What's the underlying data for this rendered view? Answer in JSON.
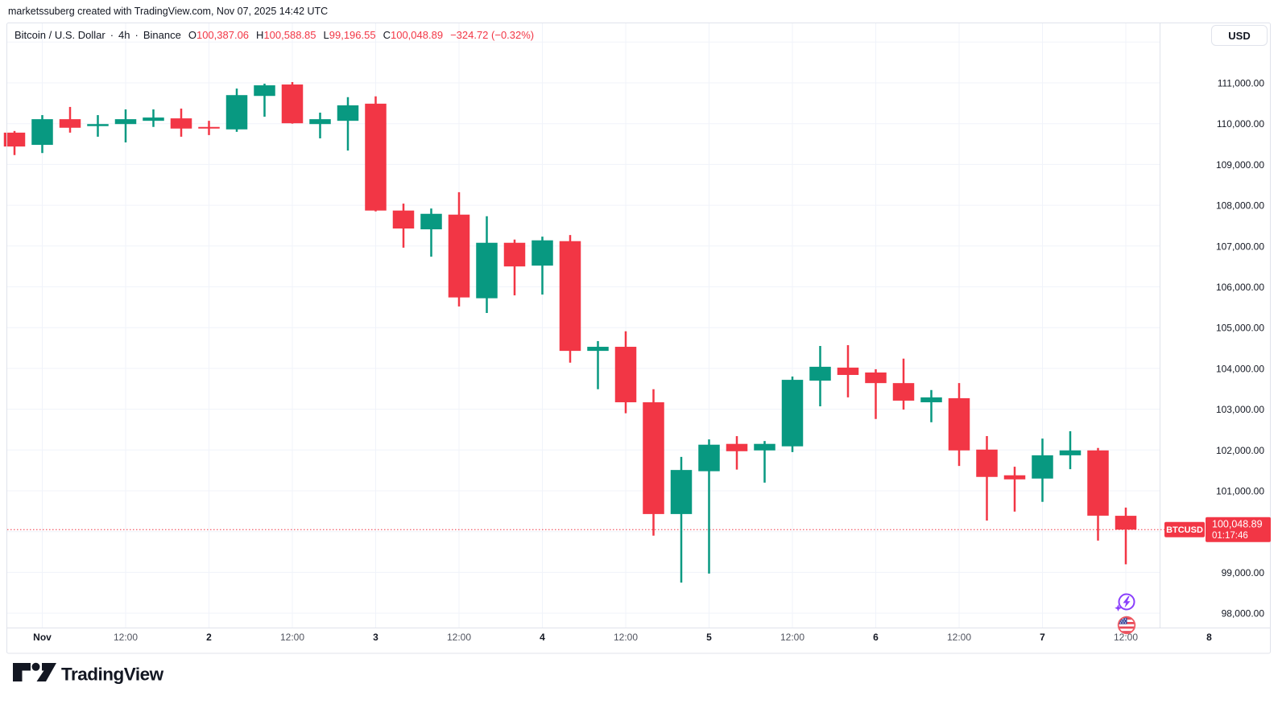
{
  "attribution": "marketssuberg created with TradingView.com, Nov 07, 2025 14:42 UTC",
  "legend": {
    "symbol_title": "Bitcoin / U.S. Dollar",
    "separator": "·",
    "interval": "4h",
    "exchange": "Binance",
    "ohlc": {
      "o_label": "O",
      "o": "100,387.06",
      "h_label": "H",
      "h": "100,588.85",
      "l_label": "L",
      "l": "99,196.55",
      "c_label": "C",
      "c": "100,048.89"
    },
    "change": "−324.72 (−0.32%)"
  },
  "price_scale": {
    "currency_button": "USD",
    "last_price": {
      "tag": "BTCUSD",
      "price_text": "100,048.89",
      "countdown": "01:17:46",
      "value": 100048.89
    }
  },
  "footer": {
    "logo_text": "TradingView"
  },
  "icons": {
    "flash_event": "lightning-circle-icon",
    "economic_event": "us-flag-circle-icon"
  },
  "colors": {
    "up": "#089981",
    "down": "#F23645",
    "grid": "#F0F3FA",
    "border": "#E0E3EB",
    "text": "#131722",
    "muted": "#50535E",
    "tag_text": "#FFFFFF"
  },
  "chart_data": {
    "type": "candlestick",
    "title": "Bitcoin / U.S. Dollar · 4h · Binance",
    "symbol": "BTCUSD",
    "interval": "4h",
    "exchange": "Binance",
    "grid": true,
    "ylim": [
      98000,
      112000
    ],
    "price_axis_step": 1000,
    "last_price": 100048.89,
    "price_ticks": [
      {
        "v": 111000,
        "t": "111,000.00"
      },
      {
        "v": 110000,
        "t": "110,000.00"
      },
      {
        "v": 109000,
        "t": "109,000.00"
      },
      {
        "v": 108000,
        "t": "108,000.00"
      },
      {
        "v": 107000,
        "t": "107,000.00"
      },
      {
        "v": 106000,
        "t": "106,000.00"
      },
      {
        "v": 105000,
        "t": "105,000.00"
      },
      {
        "v": 104000,
        "t": "104,000.00"
      },
      {
        "v": 103000,
        "t": "103,000.00"
      },
      {
        "v": 102000,
        "t": "102,000.00"
      },
      {
        "v": 101000,
        "t": "101,000.00"
      },
      {
        "v": 100000,
        "t": "100,000.00"
      },
      {
        "v": 99000,
        "t": "99,000.00"
      },
      {
        "v": 98000,
        "t": "98,000.00"
      }
    ],
    "time_ticks": [
      {
        "label": "Nov",
        "index": 1,
        "major": true
      },
      {
        "label": "12:00",
        "index": 4,
        "major": false
      },
      {
        "label": "2",
        "index": 7,
        "major": true
      },
      {
        "label": "12:00",
        "index": 10,
        "major": false
      },
      {
        "label": "3",
        "index": 13,
        "major": true
      },
      {
        "label": "12:00",
        "index": 16,
        "major": false
      },
      {
        "label": "4",
        "index": 19,
        "major": true
      },
      {
        "label": "12:00",
        "index": 22,
        "major": false
      },
      {
        "label": "5",
        "index": 25,
        "major": true
      },
      {
        "label": "12:00",
        "index": 28,
        "major": false
      },
      {
        "label": "6",
        "index": 31,
        "major": true
      },
      {
        "label": "12:00",
        "index": 34,
        "major": false
      },
      {
        "label": "7",
        "index": 37,
        "major": true
      },
      {
        "label": "12:00",
        "index": 40,
        "major": false
      },
      {
        "label": "8",
        "index": 43,
        "major": true
      }
    ],
    "candles": [
      [
        109780,
        109820,
        109230,
        109440
      ],
      [
        109480,
        110210,
        109280,
        110110
      ],
      [
        110110,
        110410,
        109780,
        109900
      ],
      [
        109940,
        110210,
        109680,
        109990
      ],
      [
        109990,
        110350,
        109540,
        110110
      ],
      [
        110070,
        110350,
        109920,
        110150
      ],
      [
        110130,
        110370,
        109680,
        109880
      ],
      [
        109920,
        110070,
        109720,
        109880
      ],
      [
        109860,
        110860,
        109800,
        110700
      ],
      [
        110680,
        110980,
        110170,
        110940
      ],
      [
        110960,
        111020,
        110000,
        110010
      ],
      [
        109990,
        110270,
        109640,
        110110
      ],
      [
        110070,
        110650,
        109340,
        110450
      ],
      [
        110490,
        110670,
        107850,
        107870
      ],
      [
        107870,
        108040,
        106960,
        107430
      ],
      [
        107410,
        107920,
        106740,
        107790
      ],
      [
        107770,
        108320,
        105520,
        105740
      ],
      [
        105720,
        107730,
        105360,
        107080
      ],
      [
        107080,
        107160,
        105790,
        106500
      ],
      [
        106520,
        107230,
        105810,
        107140
      ],
      [
        107120,
        107270,
        104140,
        104430
      ],
      [
        104430,
        104670,
        103490,
        104530
      ],
      [
        104530,
        104910,
        102900,
        103170
      ],
      [
        103170,
        103490,
        99900,
        100430
      ],
      [
        100430,
        101830,
        98750,
        101510
      ],
      [
        101480,
        102260,
        98970,
        102130
      ],
      [
        102150,
        102340,
        101520,
        101970
      ],
      [
        101990,
        102220,
        101200,
        102150
      ],
      [
        102090,
        103800,
        101950,
        103720
      ],
      [
        103700,
        104550,
        103070,
        104040
      ],
      [
        104020,
        104570,
        103290,
        103840
      ],
      [
        103900,
        103980,
        102760,
        103640
      ],
      [
        103640,
        104240,
        102990,
        103210
      ],
      [
        103170,
        103470,
        102680,
        103290
      ],
      [
        103270,
        103640,
        101610,
        101990
      ],
      [
        102010,
        102340,
        100270,
        101340
      ],
      [
        101380,
        101590,
        100490,
        101280
      ],
      [
        101300,
        102280,
        100730,
        101870
      ],
      [
        101870,
        102460,
        101530,
        101990
      ],
      [
        101990,
        102050,
        99780,
        100390
      ],
      [
        100387.06,
        100588.85,
        99196.55,
        100048.89
      ]
    ]
  }
}
